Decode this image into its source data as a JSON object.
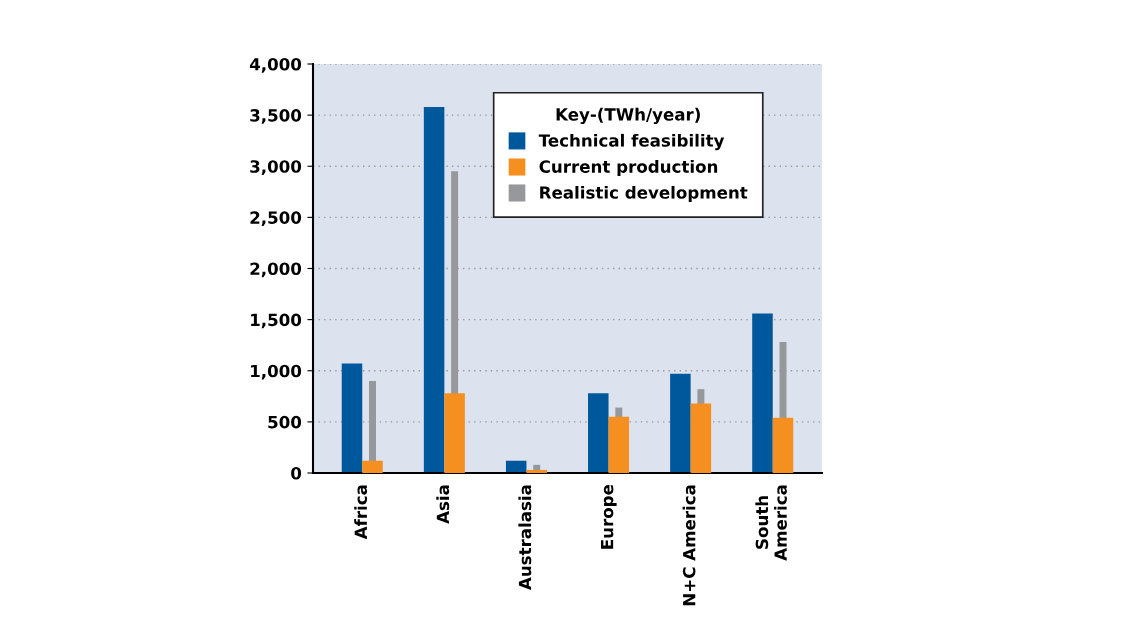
{
  "chart_data": {
    "type": "bar",
    "categories": [
      "Africa",
      "Asia",
      "Australasia",
      "Europe",
      "N+C America",
      "South\nAmerica"
    ],
    "legend_title": "Key-(TWh/year)",
    "series": [
      {
        "name": "Technical feasibility",
        "color": "#00589c",
        "values": [
          1070,
          3580,
          120,
          780,
          970,
          1560
        ]
      },
      {
        "name": "Realistic development",
        "color": "#97989b",
        "values": [
          900,
          2950,
          80,
          640,
          820,
          1280
        ]
      },
      {
        "name": "Current production",
        "color": "#f58f1f",
        "values": [
          120,
          780,
          30,
          550,
          680,
          540
        ]
      }
    ],
    "ylim": [
      0,
      4000
    ],
    "yticks": [
      {
        "value": 0,
        "label": "0"
      },
      {
        "value": 500,
        "label": "500"
      },
      {
        "value": 1000,
        "label": "1,000"
      },
      {
        "value": 1500,
        "label": "1,500"
      },
      {
        "value": 2000,
        "label": "2,000"
      },
      {
        "value": 2500,
        "label": "2,500"
      },
      {
        "value": 3000,
        "label": "3,000"
      },
      {
        "value": 3500,
        "label": "3,500"
      },
      {
        "value": 4000,
        "label": "4,000"
      }
    ],
    "grid": "y",
    "legend": "top right"
  }
}
